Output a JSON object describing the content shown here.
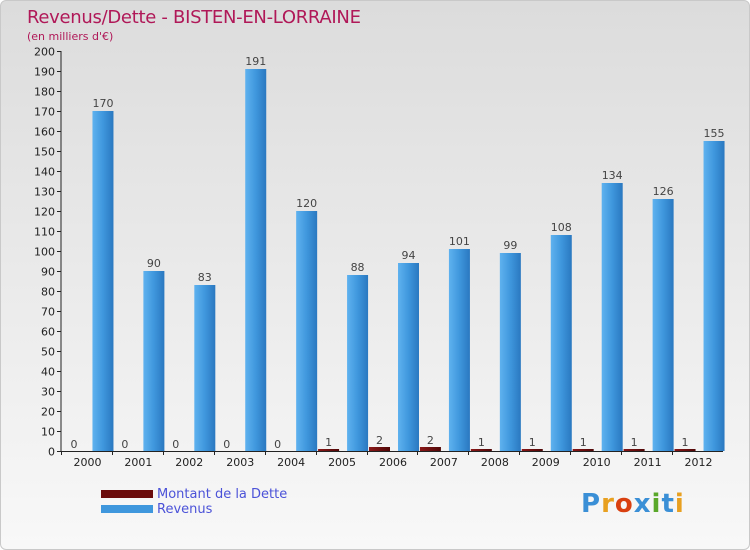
{
  "header": {
    "title": "Revenus/Dette - BISTEN-EN-LORRAINE",
    "subtitle": "(en milliers d'€)"
  },
  "chart_data": {
    "type": "bar",
    "title": "Revenus/Dette - BISTEN-EN-LORRAINE",
    "ylabel": "(en milliers d'€)",
    "xlabel": "",
    "ylim": [
      0,
      200
    ],
    "ytick_step": 10,
    "grid": false,
    "categories": [
      "2000",
      "2001",
      "2002",
      "2003",
      "2004",
      "2005",
      "2006",
      "2007",
      "2008",
      "2009",
      "2010",
      "2011",
      "2012"
    ],
    "series": [
      {
        "name": "Montant de la Dette",
        "color": "#6b0c0c",
        "values": [
          0,
          0,
          0,
          0,
          0,
          1,
          2,
          2,
          1,
          1,
          1,
          1,
          1
        ]
      },
      {
        "name": "Revenus",
        "color": "#3f97dd",
        "values": [
          170,
          90,
          83,
          191,
          120,
          88,
          94,
          101,
          99,
          108,
          134,
          126,
          155
        ]
      }
    ],
    "legend_position": "bottom-left"
  },
  "legend": {
    "items": [
      {
        "label": "Montant de la Dette",
        "color": "#6b0c0c"
      },
      {
        "label": "Revenus",
        "color": "#3f97dd"
      }
    ]
  },
  "logo": {
    "text": "Proxiti",
    "colors": [
      "#3a8fd6",
      "#e8a020",
      "#d94010",
      "#3a8fd6",
      "#5aa82a",
      "#3a8fd6",
      "#e8a020"
    ]
  }
}
